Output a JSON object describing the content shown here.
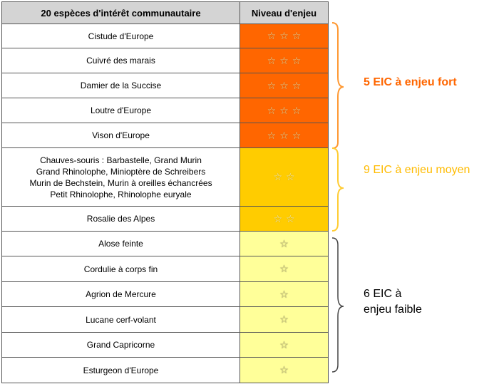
{
  "table": {
    "header_species": "20 espèces d'intérêt communautaire",
    "header_level": "Niveau d'enjeu"
  },
  "rows": [
    {
      "lines": [
        "Cistude d'Europe"
      ],
      "level": "fort",
      "stars": "☆☆☆"
    },
    {
      "lines": [
        "Cuivré des marais"
      ],
      "level": "fort",
      "stars": "☆☆☆"
    },
    {
      "lines": [
        "Damier de la Succise"
      ],
      "level": "fort",
      "stars": "☆☆☆"
    },
    {
      "lines": [
        "Loutre d'Europe"
      ],
      "level": "fort",
      "stars": "☆☆☆"
    },
    {
      "lines": [
        "Vison d'Europe"
      ],
      "level": "fort",
      "stars": "☆☆☆"
    },
    {
      "lines": [
        "Chauves-souris : Barbastelle, Grand Murin",
        "Grand Rhinolophe, Minioptère de Schreibers",
        "Murin de Bechstein, Murin à oreilles échancrées",
        "Petit Rhinolophe, Rhinolophe euryale"
      ],
      "level": "moyen",
      "stars": "☆☆"
    },
    {
      "lines": [
        "Rosalie des Alpes"
      ],
      "level": "moyen",
      "stars": "☆☆"
    },
    {
      "lines": [
        "Alose feinte"
      ],
      "level": "faible",
      "stars": "☆"
    },
    {
      "lines": [
        "Cordulie à corps fin"
      ],
      "level": "faible",
      "stars": "☆"
    },
    {
      "lines": [
        "Agrion de Mercure"
      ],
      "level": "faible",
      "stars": "☆"
    },
    {
      "lines": [
        "Lucane cerf-volant"
      ],
      "level": "faible",
      "stars": "☆"
    },
    {
      "lines": [
        "Grand Capricorne"
      ],
      "level": "faible",
      "stars": "☆"
    },
    {
      "lines": [
        "Esturgeon d'Europe"
      ],
      "level": "faible",
      "stars": "☆"
    }
  ],
  "groups": {
    "fort": {
      "label": "5 EIC à enjeu fort",
      "color": "#ff6600"
    },
    "moyen": {
      "label": "9 EIC à enjeu moyen",
      "color": "#ffbb00"
    },
    "faible": {
      "label_line1": "6 EIC à",
      "label_line2": "enjeu faible",
      "color": "#000000"
    }
  },
  "colors": {
    "fort": "#ff6600",
    "moyen": "#ffcc00",
    "faible": "#ffff99",
    "header": "#d4d4d4"
  },
  "icons": {
    "star": "star-icon"
  }
}
